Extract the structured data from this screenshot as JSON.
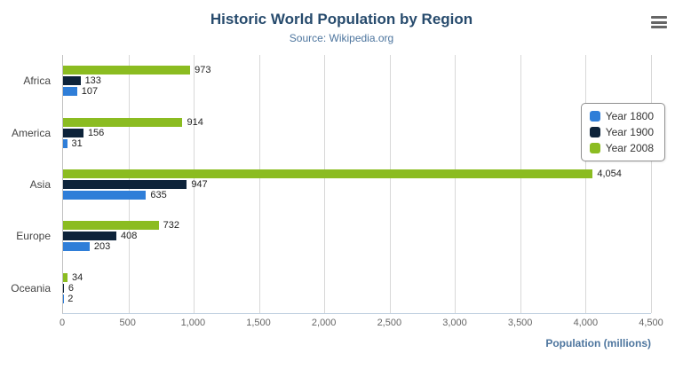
{
  "header": {
    "title": "Historic World Population by Region",
    "subtitle": "Source: Wikipedia.org"
  },
  "menu": {
    "icon": "hamburger-menu-icon"
  },
  "chart_data": {
    "type": "bar",
    "orientation": "horizontal",
    "title": "Historic World Population by Region",
    "subtitle": "Source: Wikipedia.org",
    "categories": [
      "Africa",
      "America",
      "Asia",
      "Europe",
      "Oceania"
    ],
    "series": [
      {
        "name": "Year 1800",
        "color": "#2f7ed8",
        "values": [
          107,
          31,
          635,
          203,
          2
        ]
      },
      {
        "name": "Year 1900",
        "color": "#0d233a",
        "values": [
          133,
          156,
          947,
          408,
          6
        ]
      },
      {
        "name": "Year 2008",
        "color": "#8bbc21",
        "values": [
          973,
          914,
          4054,
          732,
          34
        ]
      }
    ],
    "bar_order_top_to_bottom": [
      "Year 2008",
      "Year 1900",
      "Year 1800"
    ],
    "xlabel": "Population (millions)",
    "ylabel": "",
    "xlim": [
      0,
      4500
    ],
    "tick_interval": 500,
    "tick_labels": [
      "0",
      "500",
      "1,000",
      "1,500",
      "2,000",
      "2,500",
      "3,000",
      "3,500",
      "4,000",
      "4,500"
    ],
    "grid": true,
    "legend_position": "right"
  },
  "colors": {
    "title": "#274b6d",
    "subtitle": "#4d759e",
    "gridline": "#d8d8d8",
    "axis_line": "#c0d0e0",
    "tick_label": "#666666",
    "value_label": "#222222"
  }
}
